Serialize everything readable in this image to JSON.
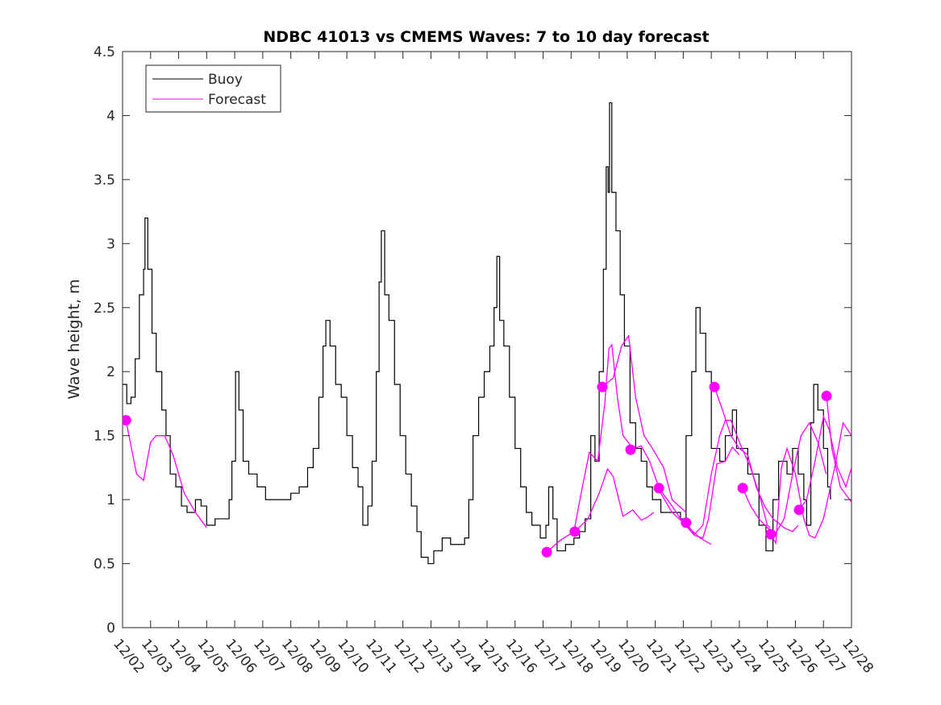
{
  "chart_data": {
    "type": "line",
    "title": "NDBC 41013 vs CMEMS Waves: 7 to 10 day forecast",
    "xlabel": "",
    "ylabel": "Wave height, m",
    "xlim": [
      0,
      26
    ],
    "ylim": [
      0,
      4.5
    ],
    "x_unit": "days since 12/02",
    "yticks": [
      "0",
      "0.5",
      "1",
      "1.5",
      "2",
      "2.5",
      "3",
      "3.5",
      "4",
      "4.5"
    ],
    "xticks": [
      "12/02",
      "12/03",
      "12/04",
      "12/05",
      "12/06",
      "12/07",
      "12/08",
      "12/09",
      "12/10",
      "12/11",
      "12/12",
      "12/13",
      "12/14",
      "12/15",
      "12/16",
      "12/17",
      "12/18",
      "12/19",
      "12/20",
      "12/21",
      "12/22",
      "12/23",
      "12/24",
      "12/25",
      "12/26",
      "12/27",
      "12/28"
    ],
    "legend": {
      "placement": "top-left",
      "entries": [
        {
          "label": "Buoy",
          "color": "#000000"
        },
        {
          "label": "Forecast",
          "color": "#ff00ff"
        }
      ]
    },
    "grid": false,
    "series": [
      {
        "name": "Buoy",
        "color": "#000000",
        "points": [
          [
            0,
            1.9
          ],
          [
            0.15,
            1.75
          ],
          [
            0.3,
            1.8
          ],
          [
            0.45,
            2.1
          ],
          [
            0.6,
            2.6
          ],
          [
            0.75,
            2.8
          ],
          [
            0.8,
            3.2
          ],
          [
            0.9,
            2.8
          ],
          [
            1.05,
            2.3
          ],
          [
            1.2,
            2.0
          ],
          [
            1.4,
            1.7
          ],
          [
            1.55,
            1.5
          ],
          [
            1.7,
            1.2
          ],
          [
            1.9,
            1.1
          ],
          [
            2.1,
            0.95
          ],
          [
            2.3,
            0.9
          ],
          [
            2.6,
            1.0
          ],
          [
            2.8,
            0.95
          ],
          [
            3.0,
            0.8
          ],
          [
            3.3,
            0.85
          ],
          [
            3.6,
            0.85
          ],
          [
            3.8,
            1.0
          ],
          [
            3.9,
            1.3
          ],
          [
            4.03,
            2.0
          ],
          [
            4.15,
            1.7
          ],
          [
            4.3,
            1.3
          ],
          [
            4.5,
            1.2
          ],
          [
            4.8,
            1.1
          ],
          [
            5.1,
            1.0
          ],
          [
            5.4,
            1.0
          ],
          [
            5.7,
            1.0
          ],
          [
            6.0,
            1.05
          ],
          [
            6.3,
            1.1
          ],
          [
            6.6,
            1.25
          ],
          [
            6.8,
            1.4
          ],
          [
            7.0,
            1.8
          ],
          [
            7.15,
            2.2
          ],
          [
            7.25,
            2.4
          ],
          [
            7.4,
            2.2
          ],
          [
            7.6,
            1.9
          ],
          [
            7.8,
            1.8
          ],
          [
            8.0,
            1.5
          ],
          [
            8.2,
            1.25
          ],
          [
            8.4,
            1.1
          ],
          [
            8.57,
            0.8
          ],
          [
            8.75,
            0.95
          ],
          [
            8.9,
            1.3
          ],
          [
            9.05,
            2.0
          ],
          [
            9.15,
            2.7
          ],
          [
            9.23,
            3.1
          ],
          [
            9.35,
            2.6
          ],
          [
            9.5,
            2.4
          ],
          [
            9.7,
            1.9
          ],
          [
            9.9,
            1.5
          ],
          [
            10.1,
            1.2
          ],
          [
            10.3,
            0.95
          ],
          [
            10.5,
            0.75
          ],
          [
            10.65,
            0.55
          ],
          [
            10.9,
            0.5
          ],
          [
            11.1,
            0.6
          ],
          [
            11.4,
            0.7
          ],
          [
            11.7,
            0.65
          ],
          [
            12.0,
            0.65
          ],
          [
            12.2,
            0.7
          ],
          [
            12.35,
            1.0
          ],
          [
            12.5,
            1.5
          ],
          [
            12.7,
            1.8
          ],
          [
            12.9,
            2.0
          ],
          [
            13.1,
            2.2
          ],
          [
            13.25,
            2.5
          ],
          [
            13.35,
            2.9
          ],
          [
            13.45,
            2.4
          ],
          [
            13.6,
            2.2
          ],
          [
            13.8,
            1.8
          ],
          [
            14.0,
            1.4
          ],
          [
            14.2,
            1.1
          ],
          [
            14.4,
            0.9
          ],
          [
            14.6,
            0.8
          ],
          [
            14.9,
            0.7
          ],
          [
            15.1,
            0.8
          ],
          [
            15.2,
            1.1
          ],
          [
            15.35,
            0.85
          ],
          [
            15.5,
            0.6
          ],
          [
            15.8,
            0.65
          ],
          [
            16.1,
            0.7
          ],
          [
            16.3,
            0.75
          ],
          [
            16.5,
            0.85
          ],
          [
            16.7,
            1.5
          ],
          [
            16.85,
            1.3
          ],
          [
            17.0,
            2.0
          ],
          [
            17.15,
            2.8
          ],
          [
            17.25,
            3.6
          ],
          [
            17.32,
            3.4
          ],
          [
            17.37,
            4.1
          ],
          [
            17.45,
            3.4
          ],
          [
            17.6,
            3.1
          ],
          [
            17.75,
            2.6
          ],
          [
            17.9,
            2.2
          ],
          [
            18.1,
            1.6
          ],
          [
            18.3,
            1.4
          ],
          [
            18.5,
            1.3
          ],
          [
            18.7,
            1.1
          ],
          [
            18.9,
            1.0
          ],
          [
            19.2,
            0.9
          ],
          [
            19.5,
            0.9
          ],
          [
            19.9,
            0.85
          ],
          [
            20.1,
            1.5
          ],
          [
            20.3,
            2.0
          ],
          [
            20.45,
            2.5
          ],
          [
            20.6,
            2.3
          ],
          [
            20.8,
            2.0
          ],
          [
            21.0,
            1.4
          ],
          [
            21.3,
            1.3
          ],
          [
            21.5,
            1.5
          ],
          [
            21.75,
            1.7
          ],
          [
            21.9,
            1.4
          ],
          [
            22.1,
            1.4
          ],
          [
            22.3,
            1.2
          ],
          [
            22.5,
            1.2
          ],
          [
            22.7,
            0.8
          ],
          [
            22.95,
            0.6
          ],
          [
            23.2,
            1.0
          ],
          [
            23.4,
            1.3
          ],
          [
            23.7,
            1.2
          ],
          [
            23.9,
            1.4
          ],
          [
            24.1,
            1.2
          ],
          [
            24.3,
            1.0
          ],
          [
            24.4,
            0.8
          ],
          [
            24.55,
            1.6
          ],
          [
            24.65,
            1.9
          ],
          [
            24.8,
            1.7
          ],
          [
            25.0,
            1.4
          ],
          [
            25.15,
            1.1
          ],
          [
            25.25,
            1.0
          ]
        ]
      },
      {
        "name": "Forecast",
        "color": "#ff00ff",
        "segments": [
          [
            [
              0.12,
              1.62
            ],
            [
              0.5,
              1.2
            ],
            [
              0.75,
              1.15
            ],
            [
              1.0,
              1.45
            ],
            [
              1.2,
              1.5
            ],
            [
              1.5,
              1.5
            ],
            [
              1.8,
              1.35
            ],
            [
              2.2,
              1.05
            ],
            [
              2.6,
              0.9
            ],
            [
              3.0,
              0.78
            ]
          ],
          [
            [
              15.13,
              0.59
            ],
            [
              15.6,
              0.68
            ],
            [
              16.1,
              0.75
            ],
            [
              16.4,
              1.1
            ],
            [
              16.65,
              1.37
            ],
            [
              16.95,
              1.3
            ],
            [
              17.2,
              1.75
            ],
            [
              17.35,
              2.18
            ],
            [
              17.45,
              2.21
            ],
            [
              17.65,
              1.8
            ],
            [
              17.85,
              1.5
            ],
            [
              18.1,
              1.43
            ]
          ],
          [
            [
              16.13,
              0.75
            ],
            [
              16.6,
              0.85
            ],
            [
              17.0,
              1.05
            ],
            [
              17.3,
              1.24
            ],
            [
              17.5,
              1.18
            ],
            [
              17.85,
              0.87
            ],
            [
              18.2,
              0.92
            ],
            [
              18.5,
              0.84
            ],
            [
              18.7,
              0.86
            ],
            [
              18.95,
              0.9
            ]
          ],
          [
            [
              17.11,
              1.88
            ],
            [
              17.5,
              1.95
            ],
            [
              17.8,
              2.2
            ],
            [
              18.05,
              2.28
            ],
            [
              18.3,
              1.8
            ],
            [
              18.6,
              1.5
            ],
            [
              18.9,
              1.4
            ],
            [
              19.3,
              1.25
            ],
            [
              19.6,
              1.0
            ],
            [
              20.1,
              0.9
            ]
          ],
          [
            [
              18.12,
              1.39
            ],
            [
              18.5,
              1.42
            ],
            [
              18.8,
              1.3
            ],
            [
              19.2,
              1.05
            ],
            [
              19.6,
              0.9
            ],
            [
              20.1,
              0.8
            ],
            [
              20.6,
              0.7
            ],
            [
              21.0,
              0.65
            ]
          ],
          [
            [
              19.13,
              1.09
            ],
            [
              19.6,
              0.95
            ],
            [
              20.0,
              0.82
            ],
            [
              20.4,
              0.72
            ],
            [
              20.7,
              0.7
            ],
            [
              20.9,
              0.85
            ],
            [
              21.2,
              1.28
            ],
            [
              21.5,
              1.3
            ],
            [
              21.75,
              1.41
            ],
            [
              22.0,
              1.35
            ]
          ],
          [
            [
              20.1,
              0.82
            ],
            [
              20.4,
              0.73
            ],
            [
              20.7,
              0.8
            ],
            [
              21.0,
              1.2
            ],
            [
              21.3,
              1.5
            ],
            [
              21.5,
              1.62
            ],
            [
              21.7,
              1.62
            ],
            [
              22.0,
              1.45
            ],
            [
              22.4,
              1.25
            ],
            [
              22.7,
              1.05
            ],
            [
              23.0,
              0.8
            ],
            [
              23.1,
              0.78
            ]
          ],
          [
            [
              21.11,
              1.88
            ],
            [
              21.4,
              1.7
            ],
            [
              21.7,
              1.5
            ],
            [
              22.0,
              1.4
            ],
            [
              22.3,
              1.35
            ],
            [
              22.6,
              1.1
            ],
            [
              22.9,
              0.95
            ],
            [
              23.2,
              0.85
            ],
            [
              23.6,
              0.78
            ],
            [
              23.9,
              0.75
            ],
            [
              24.1,
              0.8
            ]
          ],
          [
            [
              22.12,
              1.09
            ],
            [
              22.4,
              0.95
            ],
            [
              22.7,
              0.85
            ],
            [
              23.0,
              0.78
            ],
            [
              23.3,
              0.74
            ],
            [
              23.6,
              0.85
            ],
            [
              23.9,
              1.2
            ],
            [
              24.2,
              1.5
            ],
            [
              24.5,
              1.6
            ],
            [
              24.8,
              1.45
            ],
            [
              25.1,
              1.2
            ]
          ],
          [
            [
              23.12,
              0.73
            ],
            [
              23.3,
              0.66
            ],
            [
              23.5,
              1.25
            ],
            [
              23.7,
              1.4
            ],
            [
              24.0,
              1.2
            ],
            [
              24.3,
              0.85
            ],
            [
              24.5,
              0.72
            ],
            [
              24.7,
              0.7
            ],
            [
              25.0,
              0.85
            ],
            [
              25.4,
              1.25
            ],
            [
              25.7,
              1.6
            ],
            [
              26.0,
              1.5
            ]
          ],
          [
            [
              24.13,
              0.92
            ],
            [
              24.4,
              1.0
            ],
            [
              24.7,
              1.3
            ],
            [
              25.0,
              1.65
            ],
            [
              25.2,
              1.55
            ],
            [
              25.5,
              1.25
            ],
            [
              25.8,
              1.1
            ],
            [
              26.0,
              1.25
            ]
          ],
          [
            [
              25.11,
              1.81
            ],
            [
              25.3,
              1.4
            ],
            [
              25.6,
              1.1
            ],
            [
              26.0,
              0.98
            ]
          ]
        ]
      },
      {
        "name": "Forecast start",
        "color": "#ff00ff",
        "markers": [
          [
            0.12,
            1.62
          ],
          [
            15.13,
            0.59
          ],
          [
            16.13,
            0.75
          ],
          [
            17.11,
            1.88
          ],
          [
            18.12,
            1.39
          ],
          [
            19.13,
            1.09
          ],
          [
            20.1,
            0.82
          ],
          [
            21.11,
            1.88
          ],
          [
            22.12,
            1.09
          ],
          [
            23.12,
            0.73
          ],
          [
            24.13,
            0.92
          ],
          [
            25.11,
            1.81
          ]
        ]
      }
    ]
  }
}
